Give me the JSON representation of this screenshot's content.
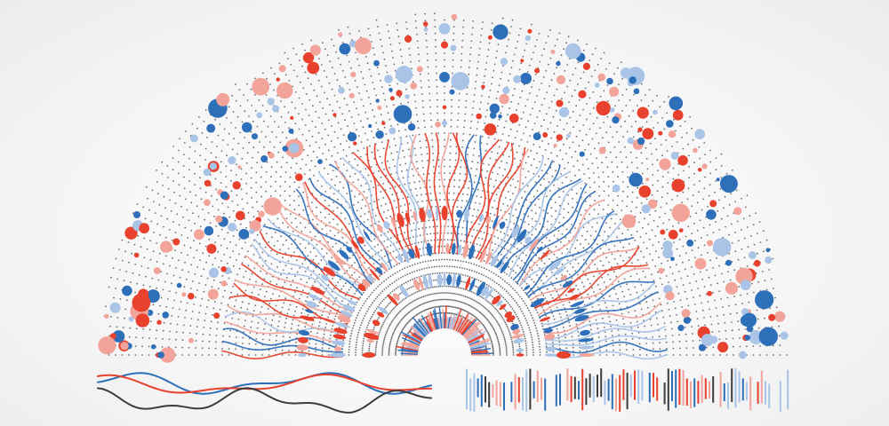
{
  "stock_id": "533427302",
  "colors": {
    "red": "#e8412d",
    "blue": "#2e6fb9",
    "pale_red": "#f2a49a",
    "pale_blue": "#a9c4e6",
    "dark": "#3c3c3c",
    "dot": "#6e6e6e"
  }
}
